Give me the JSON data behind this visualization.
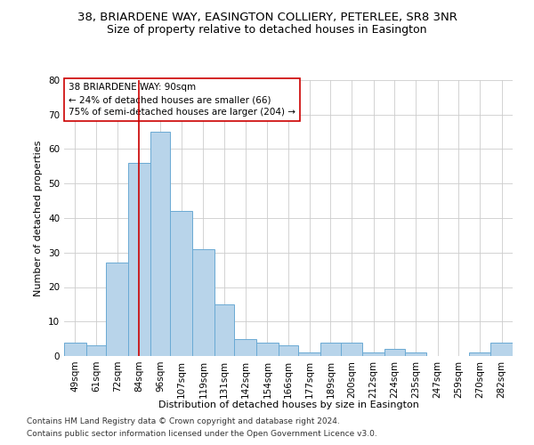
{
  "title": "38, BRIARDENE WAY, EASINGTON COLLIERY, PETERLEE, SR8 3NR",
  "subtitle": "Size of property relative to detached houses in Easington",
  "xlabel": "Distribution of detached houses by size in Easington",
  "ylabel": "Number of detached properties",
  "bar_color": "#b8d4ea",
  "bar_edge_color": "#6aaad4",
  "vline_x": 90,
  "vline_color": "#cc0000",
  "categories": [
    "49sqm",
    "61sqm",
    "72sqm",
    "84sqm",
    "96sqm",
    "107sqm",
    "119sqm",
    "131sqm",
    "142sqm",
    "154sqm",
    "166sqm",
    "177sqm",
    "189sqm",
    "200sqm",
    "212sqm",
    "224sqm",
    "235sqm",
    "247sqm",
    "259sqm",
    "270sqm",
    "282sqm"
  ],
  "bin_edges": [
    49,
    61,
    72,
    84,
    96,
    107,
    119,
    131,
    142,
    154,
    166,
    177,
    189,
    200,
    212,
    224,
    235,
    247,
    259,
    270,
    282
  ],
  "bin_width": 13,
  "values": [
    4,
    3,
    27,
    56,
    65,
    42,
    31,
    15,
    5,
    4,
    3,
    1,
    4,
    4,
    1,
    2,
    1,
    0,
    0,
    1,
    4
  ],
  "ylim": [
    0,
    80
  ],
  "yticks": [
    0,
    10,
    20,
    30,
    40,
    50,
    60,
    70,
    80
  ],
  "annotation_text": "38 BRIARDENE WAY: 90sqm\n← 24% of detached houses are smaller (66)\n75% of semi-detached houses are larger (204) →",
  "annotation_box_color": "#ffffff",
  "annotation_box_edge": "#cc0000",
  "footnote1": "Contains HM Land Registry data © Crown copyright and database right 2024.",
  "footnote2": "Contains public sector information licensed under the Open Government Licence v3.0.",
  "background_color": "#ffffff",
  "grid_color": "#cccccc",
  "title_fontsize": 9.5,
  "subtitle_fontsize": 9,
  "axis_label_fontsize": 8,
  "tick_fontsize": 7.5,
  "annotation_fontsize": 7.5,
  "footnote_fontsize": 6.5
}
